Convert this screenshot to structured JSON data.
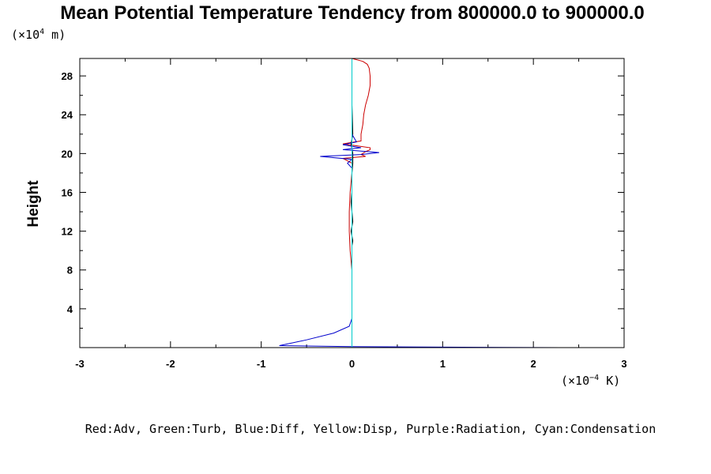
{
  "chart_data": {
    "type": "line",
    "title": "Mean Potential Temperature Tendency from 800000.0 to 900000.0",
    "ylabel": "Height",
    "y_unit_prefix": "(×10",
    "y_unit_exp": "4",
    "y_unit_suffix": " m)",
    "x_unit_prefix": "(×10",
    "x_unit_exp": "−4",
    "x_unit_suffix": " K)",
    "xlim": [
      -3,
      3
    ],
    "ylim": [
      0,
      29.8
    ],
    "xticks": [
      -3,
      -2,
      -1,
      0,
      1,
      2,
      3
    ],
    "xtick_labels": [
      "-3",
      "-2",
      "-1",
      "0",
      "1",
      "2",
      "3"
    ],
    "yticks": [
      4,
      8,
      12,
      16,
      20,
      24,
      28
    ],
    "ytick_labels": [
      "4",
      "8",
      "12",
      "16",
      "20",
      "24",
      "28"
    ],
    "legend_text": "Red:Adv, Green:Turb, Blue:Diff, Yellow:Disp, Purple:Radiation, Cyan:Condensation",
    "series": [
      {
        "color": "#cc0000",
        "x": [
          0.0,
          0.0,
          0.0,
          -0.02,
          -0.03,
          -0.03,
          -0.02,
          0.0,
          0.0,
          -0.1,
          0.15,
          0.1,
          0.15,
          0.2,
          0.2,
          0.05,
          -0.1,
          0.1,
          0.1,
          0.12,
          0.13,
          0.15,
          0.18,
          0.2,
          0.2,
          0.19,
          0.17,
          0.12,
          0.0
        ],
        "y": [
          0.0,
          4.0,
          8.0,
          10.0,
          12.0,
          14.0,
          16.0,
          18.0,
          19.0,
          19.5,
          19.7,
          19.9,
          20.2,
          20.4,
          20.6,
          20.8,
          21.0,
          21.3,
          22.0,
          23.0,
          24.0,
          25.0,
          26.0,
          27.0,
          28.0,
          28.8,
          29.2,
          29.5,
          29.8
        ]
      },
      {
        "color": "#000000",
        "x": [
          0.0,
          0.0,
          0.0,
          0.01,
          -0.01,
          0.01,
          -0.01,
          0.0,
          0.0,
          0.01,
          0.01,
          -0.01,
          0.01,
          0.0,
          0.0,
          0.0,
          0.0
        ],
        "y": [
          0.0,
          4.0,
          10.5,
          11.0,
          12.0,
          13.0,
          15.0,
          16.0,
          18.0,
          19.0,
          20.0,
          21.0,
          22.0,
          25.0,
          27.0,
          29.0,
          29.8
        ]
      },
      {
        "color": "#0000cc",
        "x": [
          2.3,
          1.0,
          0.0,
          -0.8,
          -0.5,
          -0.2,
          -0.03,
          0.0,
          0.0,
          0.0,
          -0.05,
          0.0,
          -0.35,
          0.1,
          0.3,
          -0.1,
          0.1,
          -0.1,
          0.05,
          0.0,
          0.0,
          0.0,
          0.0,
          0.0
        ],
        "y": [
          0.0,
          0.05,
          0.1,
          0.2,
          0.8,
          1.5,
          2.2,
          3.0,
          8.0,
          18.5,
          19.0,
          19.4,
          19.7,
          19.9,
          20.1,
          20.4,
          20.6,
          20.9,
          21.2,
          22.0,
          25.0,
          28.0,
          29.5,
          29.8
        ]
      },
      {
        "color": "#00cccc",
        "x": [
          0.0,
          0.0,
          0.0,
          0.0,
          0.0,
          0.0,
          0.0
        ],
        "y": [
          0.0,
          4.0,
          10.0,
          15.0,
          20.0,
          25.0,
          29.8
        ]
      }
    ]
  }
}
